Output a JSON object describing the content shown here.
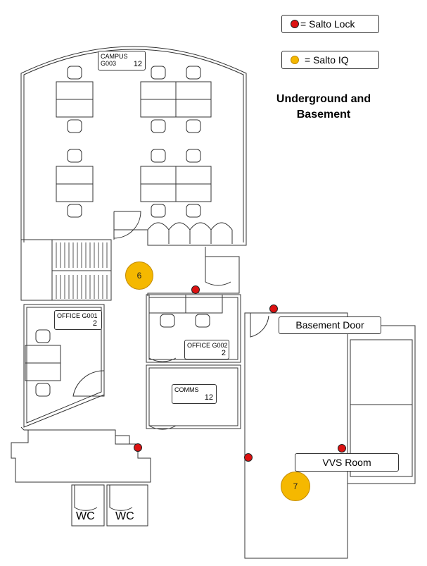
{
  "legend": {
    "lock_label": "= Salto Lock",
    "iq_label": "= Salto IQ",
    "lock_color": "#dd1111",
    "iq_color": "#f5b800"
  },
  "title": {
    "line1": "Underground and",
    "line2": "Basement"
  },
  "rooms": {
    "campus": {
      "name": "CAMPUS G003",
      "capacity": "12"
    },
    "office_g001": {
      "name": "OFFICE G001",
      "capacity": "2"
    },
    "office_g002": {
      "name": "OFFICE G002",
      "capacity": "2"
    },
    "comms": {
      "name": "COMMS",
      "capacity": "12"
    },
    "wc1": "WC",
    "wc2": "WC"
  },
  "callouts": {
    "basement_door": "Basement Door",
    "vvs_room": "VVS Room"
  },
  "salto_iq": [
    {
      "label": "6"
    },
    {
      "label": "7"
    }
  ]
}
